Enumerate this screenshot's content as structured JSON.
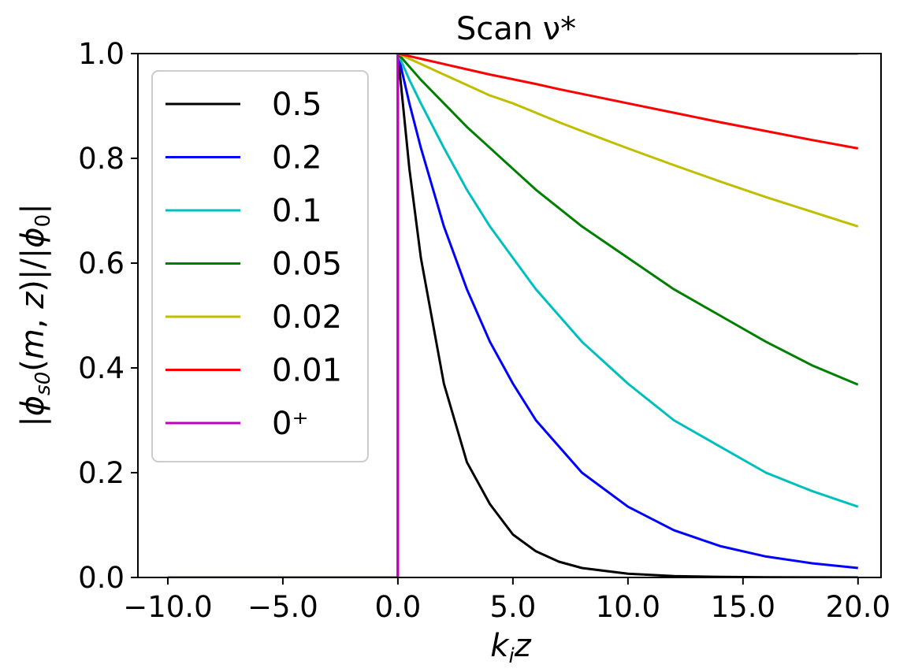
{
  "chart_data": {
    "type": "line",
    "title": "Scan ν*",
    "xlabel": "k_i z",
    "ylabel": "|φ_s0(m, z)|/|φ_0|",
    "xlim": [
      -11.3,
      21.0
    ],
    "ylim": [
      0.0,
      1.0
    ],
    "x_ticks": [
      -10.0,
      -5.0,
      0.0,
      5.0,
      10.0,
      15.0,
      20.0
    ],
    "x_tick_labels": [
      "−10.0",
      "−5.0",
      "0.0",
      "5.0",
      "10.0",
      "15.0",
      "20.0"
    ],
    "y_ticks": [
      0.0,
      0.2,
      0.4,
      0.6,
      0.8,
      1.0
    ],
    "y_tick_labels": [
      "0.0",
      "0.2",
      "0.4",
      "0.6",
      "0.8",
      "1.0"
    ],
    "grid": false,
    "legend_position": "upper-left",
    "x_sample": [
      -10,
      -5,
      0,
      0.5,
      1,
      2,
      3,
      4,
      5,
      6,
      7,
      8,
      10,
      12,
      14,
      16,
      18,
      20
    ],
    "series": [
      {
        "name": "0.5",
        "color": "#000000",
        "x": [
          -10,
          -5,
          0,
          0,
          0.5,
          1,
          2,
          3,
          4,
          5,
          6,
          7,
          8,
          10,
          12,
          14,
          16,
          18,
          20
        ],
        "y": [
          0.0,
          0.0,
          0.0,
          1.0,
          0.78,
          0.61,
          0.37,
          0.22,
          0.14,
          0.082,
          0.05,
          0.03,
          0.018,
          0.007,
          0.0025,
          0.001,
          0.0003,
          0.0001,
          0.0
        ]
      },
      {
        "name": "0.2",
        "color": "#0000ff",
        "x": [
          -10,
          -5,
          0,
          0,
          0.5,
          1,
          2,
          3,
          4,
          5,
          6,
          7,
          8,
          10,
          12,
          14,
          16,
          18,
          20
        ],
        "y": [
          0.0,
          0.0,
          0.0,
          1.0,
          0.905,
          0.82,
          0.67,
          0.55,
          0.45,
          0.37,
          0.3,
          0.25,
          0.2,
          0.135,
          0.09,
          0.06,
          0.04,
          0.027,
          0.018
        ]
      },
      {
        "name": "0.1",
        "color": "#00bfbf",
        "x": [
          -10,
          -5,
          0,
          0,
          0.5,
          1,
          2,
          3,
          4,
          5,
          6,
          7,
          8,
          10,
          12,
          14,
          16,
          18,
          20
        ],
        "y": [
          0.0,
          0.0,
          0.0,
          1.0,
          0.95,
          0.905,
          0.82,
          0.74,
          0.67,
          0.61,
          0.55,
          0.5,
          0.45,
          0.37,
          0.3,
          0.25,
          0.2,
          0.165,
          0.135
        ]
      },
      {
        "name": "0.05",
        "color": "#008000",
        "x": [
          -10,
          -5,
          0,
          0,
          0.5,
          1,
          2,
          3,
          4,
          5,
          6,
          7,
          8,
          10,
          12,
          14,
          16,
          18,
          20
        ],
        "y": [
          0.0,
          0.0,
          0.0,
          1.0,
          0.975,
          0.95,
          0.905,
          0.86,
          0.82,
          0.78,
          0.74,
          0.705,
          0.67,
          0.61,
          0.55,
          0.5,
          0.45,
          0.405,
          0.368
        ]
      },
      {
        "name": "0.02",
        "color": "#bfbf00",
        "x": [
          -10,
          -5,
          0,
          0,
          0.5,
          1,
          2,
          3,
          4,
          5,
          6,
          7,
          8,
          10,
          12,
          14,
          16,
          18,
          20
        ],
        "y": [
          0.0,
          0.0,
          0.0,
          1.0,
          0.99,
          0.98,
          0.96,
          0.94,
          0.92,
          0.905,
          0.887,
          0.869,
          0.852,
          0.819,
          0.787,
          0.756,
          0.726,
          0.698,
          0.67
        ]
      },
      {
        "name": "0.01",
        "color": "#ff0000",
        "x": [
          -10,
          -5,
          0,
          0,
          0.5,
          1,
          2,
          3,
          4,
          5,
          6,
          7,
          8,
          10,
          12,
          14,
          16,
          18,
          20
        ],
        "y": [
          0.0,
          0.0,
          0.0,
          1.0,
          0.995,
          0.99,
          0.98,
          0.97,
          0.96,
          0.951,
          0.942,
          0.932,
          0.923,
          0.905,
          0.887,
          0.869,
          0.852,
          0.835,
          0.819
        ]
      },
      {
        "name": "0⁺",
        "color": "#bf00bf",
        "x": [
          -10,
          -5,
          0,
          0,
          5,
          10,
          15,
          20
        ],
        "y": [
          0.0,
          0.0,
          0.0,
          1.0,
          1.0,
          1.0,
          1.0,
          1.0
        ]
      }
    ]
  }
}
